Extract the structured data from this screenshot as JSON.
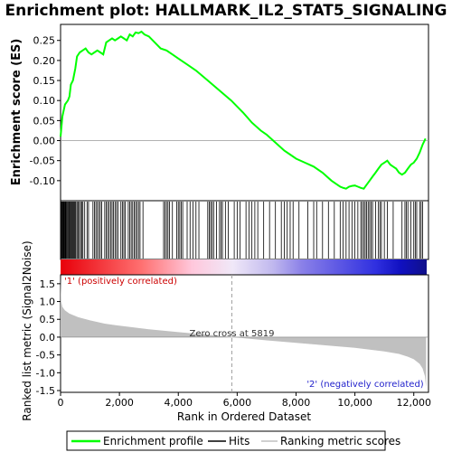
{
  "chart_data": {
    "type": "line",
    "title": "Enrichment plot: HALLMARK_IL2_STAT5_SIGNALING",
    "xlabel": "Rank in Ordered Dataset",
    "xlim": [
      0,
      12500
    ],
    "x_ticks": [
      0,
      2000,
      4000,
      6000,
      8000,
      10000,
      12000
    ],
    "x_tick_labels": [
      "0",
      "2,000",
      "4,000",
      "6,000",
      "8,000",
      "10,000",
      "12,000"
    ],
    "es_panel": {
      "ylabel": "Enrichment score (ES)",
      "ylim": [
        -0.15,
        0.29
      ],
      "y_ticks": [
        -0.1,
        -0.05,
        0.0,
        0.05,
        0.1,
        0.15,
        0.2,
        0.25
      ],
      "y_tick_labels": [
        "-0.10",
        "-0.05",
        "0.00",
        "0.05",
        "0.10",
        "0.15",
        "0.20",
        "0.25"
      ],
      "color": "#00ff00",
      "series_name": "Enrichment profile",
      "x": [
        0,
        60,
        150,
        250,
        300,
        350,
        420,
        500,
        560,
        650,
        750,
        850,
        950,
        1050,
        1150,
        1250,
        1350,
        1450,
        1550,
        1650,
        1750,
        1850,
        1950,
        2050,
        2150,
        2250,
        2350,
        2450,
        2550,
        2650,
        2750,
        2850,
        3000,
        3200,
        3400,
        3600,
        3800,
        4000,
        4300,
        4600,
        5000,
        5400,
        5800,
        6200,
        6500,
        6800,
        7000,
        7300,
        7600,
        7800,
        8000,
        8300,
        8600,
        8900,
        9200,
        9400,
        9500,
        9600,
        9700,
        9800,
        9900,
        10000,
        10100,
        10200,
        10300,
        10400,
        10500,
        10600,
        10700,
        10800,
        10900,
        11000,
        11100,
        11200,
        11300,
        11400,
        11500,
        11600,
        11700,
        11800,
        11900,
        12000,
        12100,
        12200,
        12300,
        12400
      ],
      "y": [
        0.01,
        0.06,
        0.09,
        0.1,
        0.11,
        0.14,
        0.15,
        0.18,
        0.21,
        0.22,
        0.225,
        0.23,
        0.22,
        0.215,
        0.22,
        0.225,
        0.22,
        0.215,
        0.245,
        0.25,
        0.255,
        0.25,
        0.255,
        0.26,
        0.255,
        0.25,
        0.265,
        0.26,
        0.27,
        0.268,
        0.272,
        0.265,
        0.26,
        0.245,
        0.23,
        0.225,
        0.215,
        0.205,
        0.19,
        0.175,
        0.15,
        0.125,
        0.1,
        0.07,
        0.045,
        0.025,
        0.015,
        -0.005,
        -0.025,
        -0.035,
        -0.045,
        -0.055,
        -0.065,
        -0.08,
        -0.1,
        -0.11,
        -0.115,
        -0.118,
        -0.12,
        -0.115,
        -0.113,
        -0.112,
        -0.115,
        -0.118,
        -0.12,
        -0.11,
        -0.1,
        -0.09,
        -0.08,
        -0.07,
        -0.06,
        -0.055,
        -0.05,
        -0.06,
        -0.065,
        -0.07,
        -0.08,
        -0.085,
        -0.08,
        -0.07,
        -0.06,
        -0.055,
        -0.045,
        -0.03,
        -0.01,
        0.005
      ]
    },
    "hits": [
      15,
      35,
      60,
      80,
      100,
      120,
      140,
      160,
      180,
      200,
      230,
      260,
      290,
      310,
      340,
      370,
      400,
      430,
      460,
      490,
      520,
      560,
      600,
      640,
      680,
      720,
      760,
      820,
      900,
      950,
      1100,
      1150,
      1200,
      1250,
      1300,
      1350,
      1400,
      1500,
      1550,
      1600,
      1650,
      1700,
      1750,
      1800,
      1850,
      1900,
      1950,
      2050,
      2100,
      2150,
      2200,
      2300,
      2350,
      2400,
      2450,
      2500,
      2550,
      2600,
      2650,
      2700,
      2800,
      3500,
      3550,
      3600,
      3650,
      3700,
      3800,
      3950,
      4000,
      4050,
      4100,
      4150,
      4300,
      4400,
      4500,
      4600,
      4700,
      5000,
      5050,
      5100,
      5150,
      5200,
      5300,
      5400,
      5450,
      5500,
      5600,
      5700,
      5900,
      6000,
      6100,
      6300,
      6400,
      6500,
      6600,
      6700,
      6900,
      7100,
      7300,
      7500,
      7600,
      7700,
      7800,
      7900,
      8100,
      8400,
      8600,
      8700,
      8900,
      9100,
      9300,
      9500,
      9600,
      9700,
      9800,
      9900,
      10000,
      10100,
      10200,
      10250,
      10300,
      10350,
      10400,
      10450,
      10500,
      10550,
      10600,
      10700,
      10800,
      10850,
      10900,
      11000,
      11100,
      11300,
      11600,
      11700,
      11750,
      11800,
      11900,
      12000,
      12050,
      12100,
      12200,
      12250,
      12300
    ],
    "metric_panel": {
      "ylabel": "Ranked list metric (Signal2Noise)",
      "ylim": [
        -1.55,
        1.75
      ],
      "y_ticks": [
        -1.5,
        -1.0,
        -0.5,
        0.0,
        0.5,
        1.0,
        1.5
      ],
      "y_tick_labels": [
        "-1.5",
        "-1.0",
        "-0.5",
        "0.0",
        "0.5",
        "1.0",
        "1.5"
      ],
      "x": [
        0,
        20,
        60,
        150,
        300,
        600,
        1000,
        1500,
        2000,
        3000,
        4000,
        5000,
        5819,
        7000,
        8000,
        9000,
        10000,
        11000,
        11500,
        11800,
        12000,
        12200,
        12300,
        12380,
        12420
      ],
      "values": [
        1.72,
        1.0,
        0.85,
        0.75,
        0.66,
        0.56,
        0.47,
        0.38,
        0.32,
        0.22,
        0.14,
        0.07,
        0.0,
        -0.09,
        -0.16,
        -0.23,
        -0.3,
        -0.4,
        -0.47,
        -0.55,
        -0.62,
        -0.75,
        -0.88,
        -1.1,
        -1.42
      ],
      "zero_cross_label": "Zero cross at 5819",
      "zero_cross_x": 5819,
      "pos_label": "'1' (positively correlated)",
      "neg_label": "'2' (negatively correlated)"
    },
    "legend": {
      "placement": "bottom",
      "items": [
        {
          "label": "Enrichment profile",
          "color": "#00ff00"
        },
        {
          "label": "Hits",
          "color": "#000000"
        },
        {
          "label": "Ranking metric scores",
          "color": "#c0c0c0"
        }
      ]
    }
  }
}
